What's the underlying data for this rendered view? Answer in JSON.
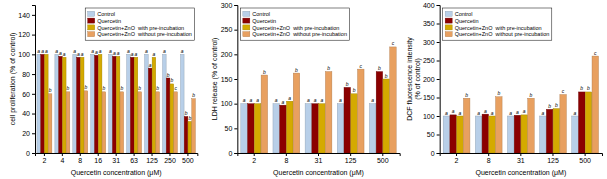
{
  "chart_data": [
    {
      "type": "bar",
      "xlabel": "Quercetin concentration (μM)",
      "ylabel": "cell proliferation (% of control)",
      "categories": [
        "2",
        "4",
        "8",
        "16",
        "31",
        "63",
        "125",
        "250",
        "500"
      ],
      "ylim": [
        0,
        150
      ],
      "yticks": [
        0,
        20,
        40,
        60,
        80,
        100,
        120,
        140
      ],
      "grid": false,
      "legend": "upper right",
      "series": [
        {
          "name": "Control",
          "color": "#b8cfe8",
          "values": [
            100,
            100,
            100,
            100,
            100,
            100,
            100,
            100,
            100
          ],
          "annotations": [
            "a",
            "a",
            "a",
            "a",
            "a",
            "a",
            "a",
            "a",
            "a"
          ]
        },
        {
          "name": "Quercetin",
          "color": "#8b0000",
          "values": [
            100,
            98,
            97,
            99,
            98,
            97,
            86,
            76,
            37
          ],
          "annotations": [
            "a",
            "a",
            "a",
            "a",
            "a",
            "a",
            "a",
            "b",
            "b"
          ]
        },
        {
          "name": "Quercetin+ZnO  with pre-incubation",
          "color": "#d4aa00",
          "values": [
            100,
            97,
            97,
            100,
            98,
            97,
            97,
            70,
            32
          ],
          "annotations": [
            "a",
            "a",
            "a",
            "a",
            "a",
            "a",
            "a",
            "b",
            "b"
          ]
        },
        {
          "name": "Quercetin+ZnO  without pre-incubation",
          "color": "#e8a060",
          "values": [
            60,
            62,
            63,
            62,
            62,
            62,
            62,
            62,
            55
          ],
          "annotations": [
            "b",
            "b",
            "b",
            "b",
            "b",
            "b",
            "b",
            "c",
            "b"
          ]
        }
      ]
    },
    {
      "type": "bar",
      "xlabel": "Quercetin concentration (μM)",
      "ylabel": "LDH release (% of control)",
      "categories": [
        "2",
        "8",
        "31",
        "125",
        "500"
      ],
      "ylim": [
        0,
        300
      ],
      "yticks": [
        0,
        50,
        100,
        150,
        200,
        250,
        300
      ],
      "grid": false,
      "legend": "upper left",
      "series": [
        {
          "name": "Control",
          "color": "#b8cfe8",
          "values": [
            100,
            100,
            100,
            100,
            100
          ],
          "annotations": [
            "a",
            "a",
            "a",
            "a",
            "a"
          ]
        },
        {
          "name": "Quercetin",
          "color": "#8b0000",
          "values": [
            100,
            97,
            100,
            133,
            165
          ],
          "annotations": [
            "a",
            "a",
            "a",
            "b",
            "b"
          ]
        },
        {
          "name": "Quercetin+ZnO  with pre-incubation",
          "color": "#d4aa00",
          "values": [
            100,
            105,
            100,
            120,
            150
          ],
          "annotations": [
            "a",
            "a",
            "a",
            "b",
            "b"
          ]
        },
        {
          "name": "Quercetin+ZnO  without pre-incubation",
          "color": "#e8a060",
          "values": [
            158,
            162,
            165,
            170,
            215
          ],
          "annotations": [
            "b",
            "b",
            "b",
            "c",
            "c"
          ]
        }
      ]
    },
    {
      "type": "bar",
      "xlabel": "Quercetin concentration (μM)",
      "ylabel": "DCF fluorescence intensity\n(% of control)",
      "categories": [
        "2",
        "8",
        "31",
        "125",
        "500"
      ],
      "ylim": [
        0,
        400
      ],
      "yticks": [
        0,
        50,
        100,
        150,
        200,
        250,
        300,
        350,
        400
      ],
      "grid": false,
      "legend": "upper left",
      "series": [
        {
          "name": "Control",
          "color": "#b8cfe8",
          "values": [
            100,
            100,
            100,
            100,
            100
          ],
          "annotations": [
            "a",
            "a",
            "a",
            "a",
            "a"
          ]
        },
        {
          "name": "Quercetin",
          "color": "#8b0000",
          "values": [
            103,
            105,
            102,
            118,
            165
          ],
          "annotations": [
            "a",
            "a",
            "a",
            "b",
            "b"
          ]
        },
        {
          "name": "Quercetin+ZnO  with pre-incubation",
          "color": "#d4aa00",
          "values": [
            100,
            100,
            103,
            120,
            165
          ],
          "annotations": [
            "a",
            "a",
            "a",
            "b",
            "b"
          ]
        },
        {
          "name": "Quercetin+ZnO  without pre-incubation",
          "color": "#e8a060",
          "values": [
            148,
            152,
            148,
            158,
            262
          ],
          "annotations": [
            "b",
            "b",
            "b",
            "c",
            "c"
          ]
        }
      ]
    }
  ]
}
